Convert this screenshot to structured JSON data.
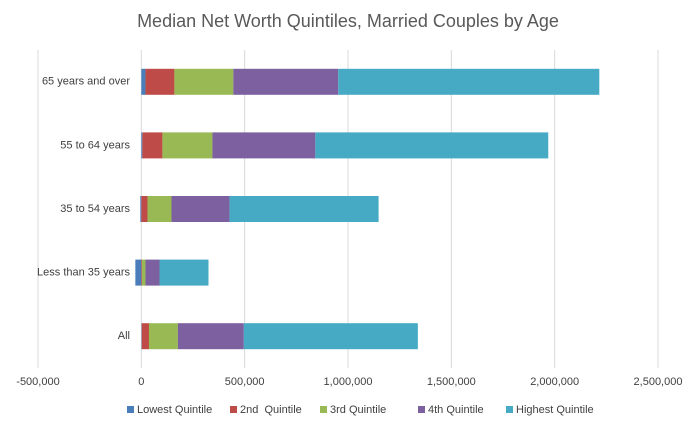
{
  "chart_data": {
    "type": "stacked-barh",
    "title": "Median Net Worth Quintiles, Married Couples by Age",
    "categories": [
      "65 years and over",
      "55 to 64 years",
      "35 to 54 years",
      "Less than 35 years",
      "All"
    ],
    "series": [
      {
        "name": "Lowest Quintile",
        "color": "#4a7ebb",
        "values": [
          20000,
          5000,
          -5000,
          -29000,
          2000
        ]
      },
      {
        "name": "2nd  Quintile",
        "color": "#be4b48",
        "values": [
          140000,
          97000,
          30000,
          3000,
          35000
        ]
      },
      {
        "name": "3rd Quintile",
        "color": "#98b954",
        "values": [
          285000,
          242000,
          116000,
          17000,
          140000
        ]
      },
      {
        "name": "4th Quintile",
        "color": "#7d60a0",
        "values": [
          508000,
          498000,
          281000,
          68000,
          319000
        ]
      },
      {
        "name": "Highest Quintile",
        "color": "#46aac5",
        "values": [
          1263000,
          1127000,
          721000,
          237000,
          842000
        ]
      }
    ],
    "xlim": [
      -500000,
      2500000
    ],
    "xticks": [
      {
        "value": -500000,
        "label": "-500,000"
      },
      0,
      {
        "value": 500000,
        "label": "500,000"
      },
      {
        "value": 1000000,
        "label": "1,000,000"
      },
      {
        "value": 1500000,
        "label": "1,500,000"
      },
      {
        "value": 2000000,
        "label": "2,000,000"
      },
      {
        "value": 2500000,
        "label": "2,500,000"
      }
    ],
    "grid": true,
    "legend": "bottom"
  }
}
